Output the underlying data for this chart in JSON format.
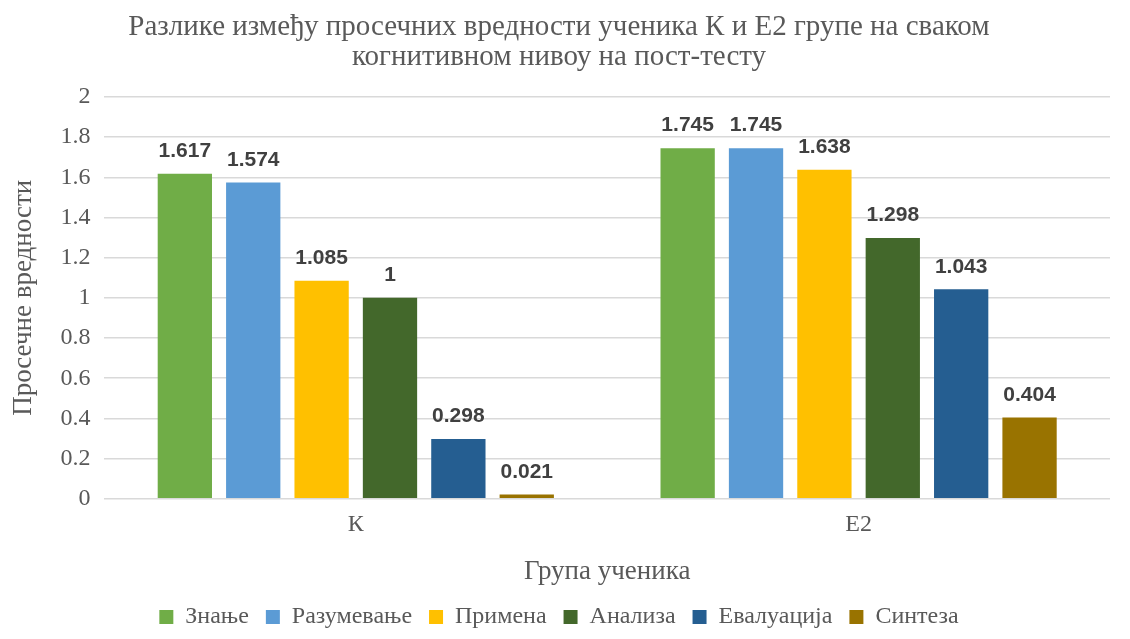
{
  "chart_data": {
    "type": "bar",
    "title": "Разлике између просечних вредности ученика К и Е2 групе на сваком когнитивном нивоу на пост-тесту",
    "xlabel": "Група ученика",
    "ylabel": "Просечне вредности",
    "categories": [
      "К",
      "Е2"
    ],
    "series": [
      {
        "name": "Знање",
        "color": "#70ad47",
        "values": [
          1.617,
          1.745
        ]
      },
      {
        "name": "Разумевање",
        "color": "#5b9bd5",
        "values": [
          1.574,
          1.745
        ]
      },
      {
        "name": "Примена",
        "color": "#ffc000",
        "values": [
          1.085,
          1.638
        ]
      },
      {
        "name": "Анализа",
        "color": "#43682b",
        "values": [
          1,
          1.298
        ]
      },
      {
        "name": "Евалуација",
        "color": "#255e91",
        "values": [
          0.298,
          1.043
        ]
      },
      {
        "name": "Синтеза",
        "color": "#997300",
        "values": [
          0.021,
          0.404
        ]
      }
    ],
    "ylim": [
      0,
      2
    ],
    "yticks": [
      0,
      0.2,
      0.4,
      0.6,
      0.8,
      1,
      1.2,
      1.4,
      1.6,
      1.8,
      2
    ],
    "grid": "y",
    "legend": "bottom",
    "data_labels": true
  }
}
